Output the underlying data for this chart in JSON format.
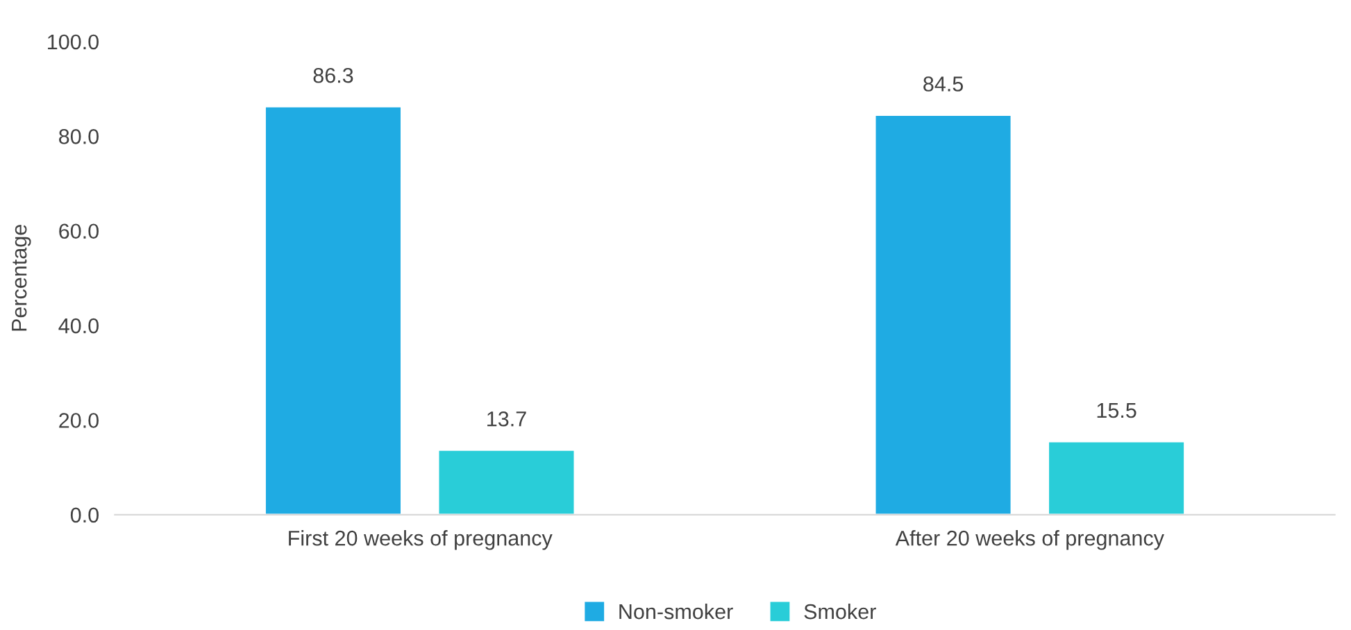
{
  "chart_data": {
    "type": "bar",
    "ylabel": "Percentage",
    "categories": [
      "First 20 weeks of pregnancy",
      "After 20 weeks of pregnancy"
    ],
    "series": [
      {
        "name": "Non-smoker",
        "color": "#1fabe3",
        "values": [
          86.3,
          84.5
        ]
      },
      {
        "name": "Smoker",
        "color": "#29cdd8",
        "values": [
          13.7,
          15.5
        ]
      }
    ],
    "ylim": [
      0,
      100
    ],
    "yticks": [
      {
        "value": 0,
        "label": "0.0"
      },
      {
        "value": 20,
        "label": "20.0"
      },
      {
        "value": 40,
        "label": "40.0"
      },
      {
        "value": 60,
        "label": "60.0"
      },
      {
        "value": 80,
        "label": "80.0"
      },
      {
        "value": 100,
        "label": "100.0"
      }
    ],
    "data_labels": true,
    "grid": false,
    "legend": "bottom",
    "marker": "square"
  }
}
